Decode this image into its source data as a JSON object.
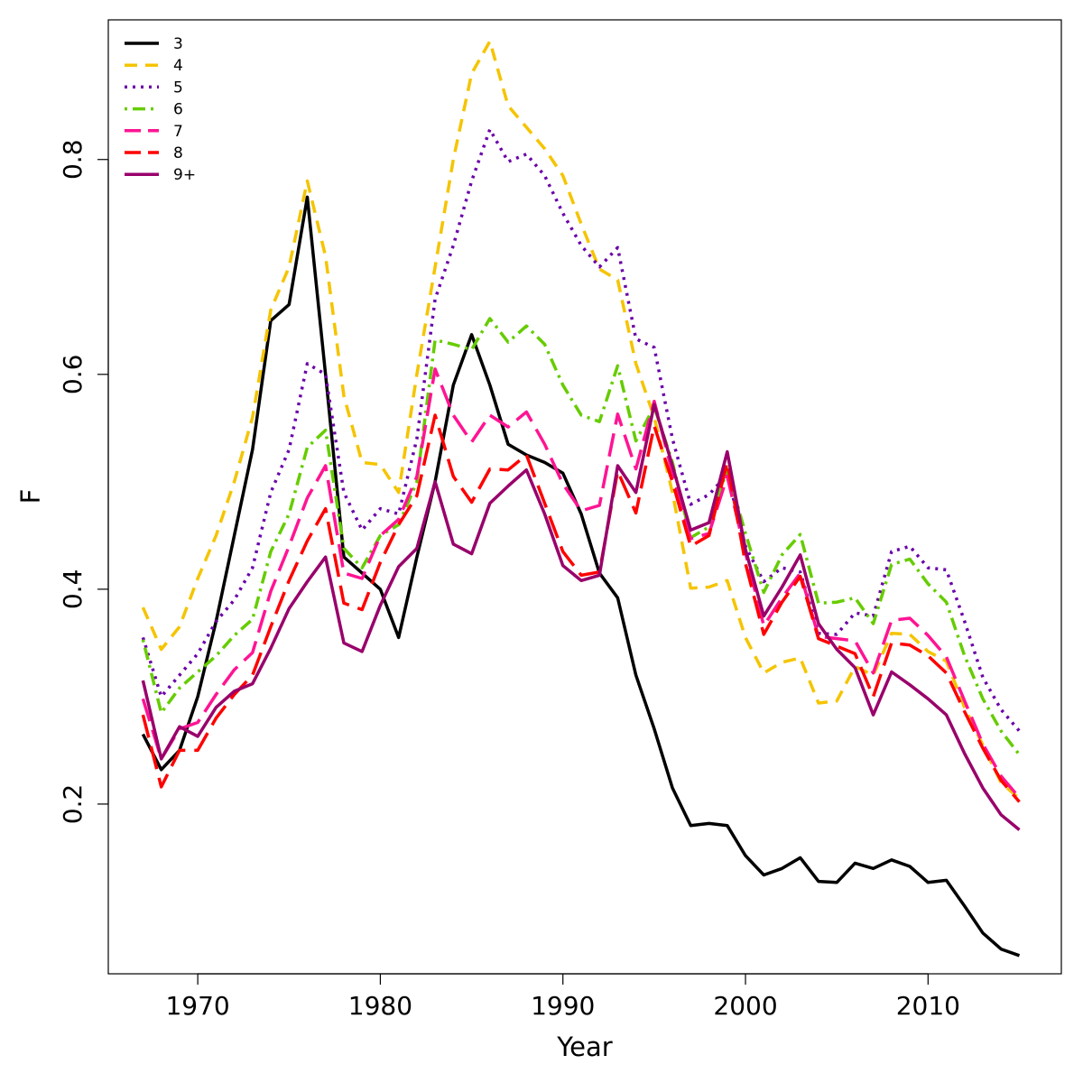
{
  "chart_data": {
    "type": "line",
    "title": "",
    "xlabel": "Year",
    "ylabel": "F",
    "xlim": [
      1965.1,
      2017.3
    ],
    "ylim": [
      0.042,
      0.93
    ],
    "xticks": [
      "1970",
      "1980",
      "1990",
      "2000",
      "2010"
    ],
    "yticks": [
      "0.2",
      "0.4",
      "0.6",
      "0.8"
    ],
    "legend_position": "top-left",
    "x": [
      1967,
      1968,
      1969,
      1970,
      1971,
      1972,
      1973,
      1974,
      1975,
      1976,
      1977,
      1978,
      1979,
      1980,
      1981,
      1982,
      1983,
      1984,
      1985,
      1986,
      1987,
      1988,
      1989,
      1990,
      1991,
      1992,
      1993,
      1994,
      1995,
      1996,
      1997,
      1998,
      1999,
      2000,
      2001,
      2002,
      2003,
      2004,
      2005,
      2006,
      2007,
      2008,
      2009,
      2010,
      2011,
      2012,
      2013,
      2014,
      2015
    ],
    "series": [
      {
        "name": "3",
        "color": "#000000",
        "dash": "solid",
        "values": [
          0.265,
          0.232,
          0.25,
          0.3,
          0.37,
          0.45,
          0.53,
          0.65,
          0.665,
          0.765,
          0.6,
          0.43,
          0.415,
          0.4,
          0.355,
          0.43,
          0.5,
          0.59,
          0.637,
          0.59,
          0.535,
          0.525,
          0.518,
          0.508,
          0.47,
          0.415,
          0.392,
          0.32,
          0.27,
          0.215,
          0.18,
          0.182,
          0.18,
          0.152,
          0.134,
          0.14,
          0.15,
          0.128,
          0.127,
          0.145,
          0.14,
          0.148,
          0.142,
          0.127,
          0.129,
          0.105,
          0.08,
          0.065,
          0.059
        ]
      },
      {
        "name": "4",
        "color": "#F5C400",
        "dash": "dashed",
        "values": [
          0.383,
          0.344,
          0.365,
          0.41,
          0.45,
          0.5,
          0.56,
          0.66,
          0.7,
          0.78,
          0.71,
          0.58,
          0.518,
          0.516,
          0.49,
          0.6,
          0.7,
          0.8,
          0.88,
          0.91,
          0.85,
          0.83,
          0.81,
          0.785,
          0.74,
          0.698,
          0.688,
          0.61,
          0.56,
          0.49,
          0.401,
          0.402,
          0.408,
          0.355,
          0.322,
          0.332,
          0.336,
          0.294,
          0.296,
          0.328,
          0.32,
          0.359,
          0.358,
          0.342,
          0.333,
          0.29,
          0.255,
          0.22,
          0.205
        ]
      },
      {
        "name": "5",
        "color": "#6A00A8",
        "dash": "dotted",
        "values": [
          0.355,
          0.3,
          0.32,
          0.34,
          0.37,
          0.39,
          0.42,
          0.49,
          0.53,
          0.61,
          0.6,
          0.49,
          0.455,
          0.475,
          0.47,
          0.54,
          0.67,
          0.72,
          0.78,
          0.828,
          0.798,
          0.805,
          0.785,
          0.75,
          0.72,
          0.7,
          0.718,
          0.633,
          0.625,
          0.54,
          0.479,
          0.488,
          0.507,
          0.44,
          0.407,
          0.42,
          0.416,
          0.359,
          0.358,
          0.378,
          0.375,
          0.435,
          0.44,
          0.42,
          0.418,
          0.37,
          0.318,
          0.288,
          0.268
        ]
      },
      {
        "name": "6",
        "color": "#66CC00",
        "dash": "dotdash",
        "values": [
          0.353,
          0.285,
          0.308,
          0.323,
          0.338,
          0.357,
          0.372,
          0.435,
          0.47,
          0.532,
          0.548,
          0.438,
          0.42,
          0.45,
          0.46,
          0.5,
          0.632,
          0.628,
          0.623,
          0.652,
          0.63,
          0.645,
          0.628,
          0.59,
          0.562,
          0.556,
          0.608,
          0.538,
          0.57,
          0.518,
          0.448,
          0.458,
          0.512,
          0.452,
          0.397,
          0.432,
          0.451,
          0.387,
          0.388,
          0.392,
          0.368,
          0.423,
          0.428,
          0.405,
          0.388,
          0.338,
          0.298,
          0.268,
          0.246
        ]
      },
      {
        "name": "7",
        "color": "#FF1493",
        "dash": "longdash",
        "values": [
          0.298,
          0.242,
          0.27,
          0.276,
          0.302,
          0.325,
          0.341,
          0.398,
          0.44,
          0.485,
          0.515,
          0.415,
          0.41,
          0.45,
          0.465,
          0.505,
          0.605,
          0.562,
          0.537,
          0.562,
          0.551,
          0.565,
          0.535,
          0.498,
          0.473,
          0.478,
          0.563,
          0.512,
          0.575,
          0.508,
          0.447,
          0.452,
          0.505,
          0.434,
          0.366,
          0.392,
          0.415,
          0.356,
          0.354,
          0.352,
          0.322,
          0.371,
          0.373,
          0.357,
          0.337,
          0.296,
          0.256,
          0.226,
          0.206
        ]
      },
      {
        "name": "8",
        "color": "#FF0000",
        "dash": "longdash",
        "values": [
          0.283,
          0.216,
          0.25,
          0.25,
          0.28,
          0.302,
          0.32,
          0.365,
          0.408,
          0.445,
          0.475,
          0.387,
          0.381,
          0.425,
          0.46,
          0.487,
          0.562,
          0.505,
          0.481,
          0.512,
          0.511,
          0.525,
          0.48,
          0.435,
          0.413,
          0.416,
          0.51,
          0.471,
          0.552,
          0.5,
          0.44,
          0.45,
          0.518,
          0.424,
          0.358,
          0.388,
          0.412,
          0.354,
          0.347,
          0.34,
          0.3,
          0.35,
          0.348,
          0.338,
          0.322,
          0.286,
          0.252,
          0.222,
          0.202
        ]
      },
      {
        "name": "9+",
        "color": "#99006B",
        "dash": "solid",
        "values": [
          0.315,
          0.242,
          0.272,
          0.263,
          0.29,
          0.305,
          0.312,
          0.345,
          0.382,
          0.407,
          0.43,
          0.35,
          0.342,
          0.385,
          0.421,
          0.438,
          0.5,
          0.442,
          0.433,
          0.48,
          0.496,
          0.511,
          0.47,
          0.422,
          0.408,
          0.413,
          0.515,
          0.49,
          0.572,
          0.515,
          0.455,
          0.462,
          0.528,
          0.437,
          0.375,
          0.402,
          0.432,
          0.368,
          0.344,
          0.327,
          0.283,
          0.323,
          0.311,
          0.298,
          0.283,
          0.247,
          0.215,
          0.19,
          0.176
        ]
      }
    ]
  }
}
